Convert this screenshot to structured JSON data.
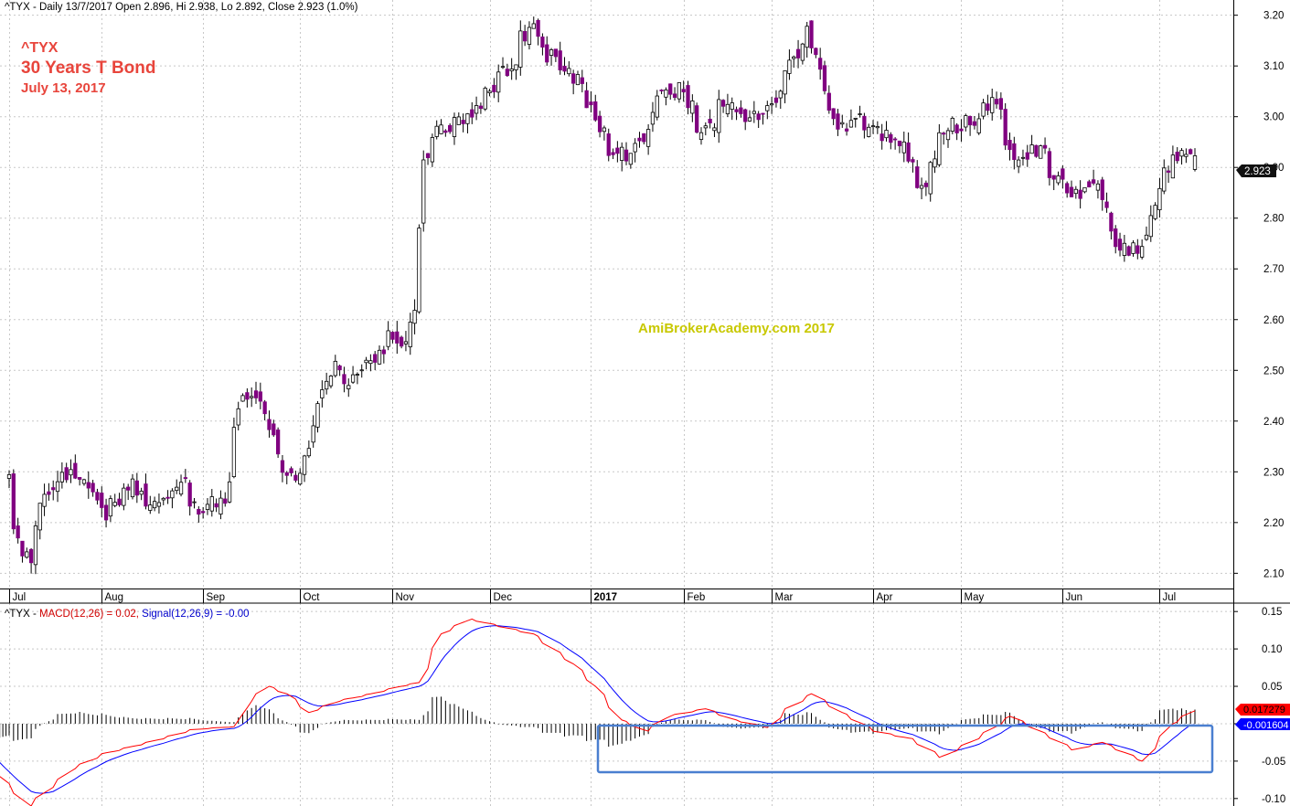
{
  "header": {
    "price_info": "^TYX - Daily 13/7/2017 Open 2.896, Hi 2.938, Lo 2.892, Close 2.923 (1.0%)",
    "macd_info_prefix": "^TYX - ",
    "macd_info_macd": "MACD(12,26) = 0.02,",
    "macd_info_signal": "Signal(12,26,9) = -0.00"
  },
  "annotations": {
    "symbol": "^TYX",
    "name": "30 Years T Bond",
    "date": "July 13, 2017",
    "watermark": "AmiBrokerAcademy.com 2017",
    "last_price_label": "2.923",
    "macd_last_label": "0.017279",
    "signal_last_label": "-0.001604"
  },
  "colors": {
    "candle_down": "#800080",
    "candle_up": "#ffffff",
    "macd_line": "#ff0000",
    "signal_line": "#0000ff",
    "title_red": "#e8453c",
    "watermark": "#c8c800",
    "highlight_box": "#4a7fd0"
  },
  "chart_data": [
    {
      "type": "candlestick",
      "title": "^TYX - Daily",
      "ylim": [
        2.07,
        3.23
      ],
      "y_ticks": [
        "2.10",
        "2.20",
        "2.30",
        "2.40",
        "2.50",
        "2.60",
        "2.70",
        "2.80",
        "2.90",
        "3.00",
        "3.10",
        "3.20"
      ],
      "x_labels": [
        "Jul",
        "Aug",
        "Sep",
        "Oct",
        "Nov",
        "Dec",
        "2017",
        "Feb",
        "Mar",
        "Apr",
        "May",
        "Jun",
        "Jul"
      ],
      "grid": true,
      "anchors": [
        [
          "2016-07-01",
          2.28
        ],
        [
          "2016-07-06",
          2.14
        ],
        [
          "2016-07-08",
          2.12
        ],
        [
          "2016-07-13",
          2.25
        ],
        [
          "2016-07-19",
          2.3
        ],
        [
          "2016-07-27",
          2.28
        ],
        [
          "2016-08-02",
          2.22
        ],
        [
          "2016-08-08",
          2.28
        ],
        [
          "2016-08-17",
          2.24
        ],
        [
          "2016-08-25",
          2.28
        ],
        [
          "2016-09-01",
          2.22
        ],
        [
          "2016-09-08",
          2.25
        ],
        [
          "2016-09-13",
          2.44
        ],
        [
          "2016-09-20",
          2.43
        ],
        [
          "2016-09-27",
          2.31
        ],
        [
          "2016-10-03",
          2.28
        ],
        [
          "2016-10-07",
          2.43
        ],
        [
          "2016-10-13",
          2.51
        ],
        [
          "2016-10-19",
          2.48
        ],
        [
          "2016-10-25",
          2.52
        ],
        [
          "2016-10-31",
          2.58
        ],
        [
          "2016-11-04",
          2.56
        ],
        [
          "2016-11-08",
          2.62
        ],
        [
          "2016-11-10",
          2.92
        ],
        [
          "2016-11-14",
          2.96
        ],
        [
          "2016-11-18",
          2.98
        ],
        [
          "2016-11-25",
          3.0
        ],
        [
          "2016-12-01",
          3.05
        ],
        [
          "2016-12-08",
          3.1
        ],
        [
          "2016-12-14",
          3.18
        ],
        [
          "2016-12-20",
          3.12
        ],
        [
          "2016-12-28",
          3.08
        ],
        [
          "2017-01-03",
          3.02
        ],
        [
          "2017-01-09",
          2.92
        ],
        [
          "2017-01-17",
          2.94
        ],
        [
          "2017-01-26",
          3.05
        ],
        [
          "2017-02-01",
          3.05
        ],
        [
          "2017-02-07",
          2.96
        ],
        [
          "2017-02-14",
          3.03
        ],
        [
          "2017-02-22",
          3.0
        ],
        [
          "2017-03-01",
          3.02
        ],
        [
          "2017-03-07",
          3.1
        ],
        [
          "2017-03-13",
          3.17
        ],
        [
          "2017-03-17",
          3.05
        ],
        [
          "2017-03-23",
          2.98
        ],
        [
          "2017-03-29",
          2.99
        ],
        [
          "2017-04-04",
          2.97
        ],
        [
          "2017-04-12",
          2.94
        ],
        [
          "2017-04-18",
          2.86
        ],
        [
          "2017-04-25",
          2.98
        ],
        [
          "2017-05-02",
          2.99
        ],
        [
          "2017-05-10",
          3.03
        ],
        [
          "2017-05-18",
          2.9
        ],
        [
          "2017-05-25",
          2.94
        ],
        [
          "2017-06-01",
          2.86
        ],
        [
          "2017-06-07",
          2.84
        ],
        [
          "2017-06-13",
          2.86
        ],
        [
          "2017-06-16",
          2.78
        ],
        [
          "2017-06-22",
          2.74
        ],
        [
          "2017-06-26",
          2.72
        ],
        [
          "2017-06-30",
          2.83
        ],
        [
          "2017-07-06",
          2.92
        ],
        [
          "2017-07-13",
          2.923
        ]
      ],
      "last_candle": {
        "date": "2017-07-13",
        "open": 2.896,
        "high": 2.938,
        "low": 2.892,
        "close": 2.923
      }
    },
    {
      "type": "line",
      "title": "MACD(12,26), Signal(12,26,9)",
      "ylim": [
        -0.11,
        0.16
      ],
      "y_ticks": [
        "0.15",
        "0.10",
        "0.05",
        "0.00",
        "-0.05",
        "-0.10"
      ],
      "series_names": [
        "MACD(12,26)",
        "Signal(12,26,9)"
      ],
      "histogram": "MACD minus Signal",
      "anchors": [
        [
          "2016-06-20",
          -0.045
        ],
        [
          "2016-07-01",
          -0.08
        ],
        [
          "2016-07-08",
          -0.11
        ],
        [
          "2016-07-15",
          -0.085
        ],
        [
          "2016-07-22",
          -0.06
        ],
        [
          "2016-08-01",
          -0.04
        ],
        [
          "2016-08-15",
          -0.025
        ],
        [
          "2016-08-29",
          -0.008
        ],
        [
          "2016-09-07",
          -0.005
        ],
        [
          "2016-09-12",
          -0.004
        ],
        [
          "2016-09-16",
          0.03
        ],
        [
          "2016-09-22",
          0.05
        ],
        [
          "2016-09-28",
          0.04
        ],
        [
          "2016-10-05",
          0.015
        ],
        [
          "2016-10-14",
          0.03
        ],
        [
          "2016-10-25",
          0.04
        ],
        [
          "2016-11-03",
          0.05
        ],
        [
          "2016-11-09",
          0.055
        ],
        [
          "2016-11-16",
          0.12
        ],
        [
          "2016-11-25",
          0.14
        ],
        [
          "2016-12-05",
          0.13
        ],
        [
          "2016-12-15",
          0.12
        ],
        [
          "2016-12-28",
          0.08
        ],
        [
          "2017-01-04",
          0.05
        ],
        [
          "2017-01-12",
          0.005
        ],
        [
          "2017-01-20",
          -0.01
        ],
        [
          "2017-01-27",
          0.01
        ],
        [
          "2017-02-08",
          0.02
        ],
        [
          "2017-02-17",
          0.005
        ],
        [
          "2017-02-28",
          -0.005
        ],
        [
          "2017-03-06",
          0.02
        ],
        [
          "2017-03-14",
          0.04
        ],
        [
          "2017-03-23",
          0.015
        ],
        [
          "2017-04-03",
          -0.01
        ],
        [
          "2017-04-14",
          -0.02
        ],
        [
          "2017-04-24",
          -0.045
        ],
        [
          "2017-05-05",
          -0.02
        ],
        [
          "2017-05-16",
          0.01
        ],
        [
          "2017-05-25",
          -0.01
        ],
        [
          "2017-06-05",
          -0.035
        ],
        [
          "2017-06-14",
          -0.025
        ],
        [
          "2017-06-27",
          -0.05
        ],
        [
          "2017-07-06",
          0.0
        ],
        [
          "2017-07-13",
          0.0173
        ]
      ],
      "last_values": {
        "macd": 0.017279,
        "signal": -0.001604
      }
    }
  ]
}
